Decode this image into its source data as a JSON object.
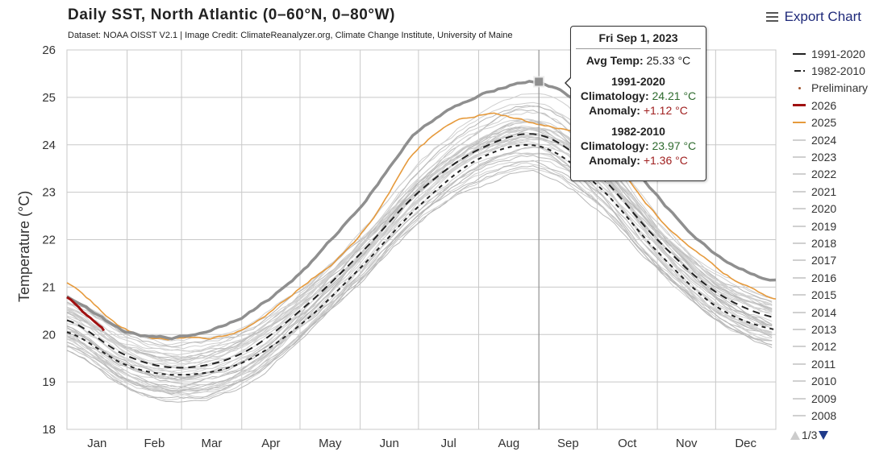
{
  "header": {
    "title": "Daily SST, North Atlantic (0–60°N, 0–80°W)",
    "subtitle": "Dataset: NOAA OISST V2.1 | Image Credit: ClimateReanalyzer.org, Climate Change Institute, University of Maine",
    "export_label": "Export Chart",
    "export_icon": "hamburger-menu-icon"
  },
  "tooltip": {
    "date": "Fri Sep 1, 2023",
    "avg_label": "Avg Temp:",
    "avg_value": "25.33 °C",
    "blocks": [
      {
        "period": "1991-2020",
        "clim_label": "Climatology:",
        "clim_value": "24.21 °C",
        "anom_label": "Anomaly:",
        "anom_value": "+1.12 °C"
      },
      {
        "period": "1982-2010",
        "clim_label": "Climatology:",
        "clim_value": "23.97 °C",
        "anom_label": "Anomaly:",
        "anom_value": "+1.36 °C"
      }
    ]
  },
  "legend": {
    "items": [
      {
        "label": "1991-2020",
        "style": "solid",
        "color": "#222222"
      },
      {
        "label": "1982-2010",
        "style": "dash-dot",
        "color": "#222222"
      },
      {
        "label": "Preliminary",
        "style": "dot",
        "color": "#a0522d"
      },
      {
        "label": "2026",
        "style": "solid-thick",
        "color": "#a01010"
      },
      {
        "label": "2025",
        "style": "solid",
        "color": "#e69a3c"
      },
      {
        "label": "2024",
        "style": "solid",
        "color": "#d0d0d0"
      },
      {
        "label": "2023",
        "style": "solid",
        "color": "#d0d0d0"
      },
      {
        "label": "2022",
        "style": "solid",
        "color": "#d0d0d0"
      },
      {
        "label": "2021",
        "style": "solid",
        "color": "#d0d0d0"
      },
      {
        "label": "2020",
        "style": "solid",
        "color": "#d0d0d0"
      },
      {
        "label": "2019",
        "style": "solid",
        "color": "#d0d0d0"
      },
      {
        "label": "2018",
        "style": "solid",
        "color": "#d0d0d0"
      },
      {
        "label": "2017",
        "style": "solid",
        "color": "#d0d0d0"
      },
      {
        "label": "2016",
        "style": "solid",
        "color": "#d0d0d0"
      },
      {
        "label": "2015",
        "style": "solid",
        "color": "#d0d0d0"
      },
      {
        "label": "2014",
        "style": "solid",
        "color": "#d0d0d0"
      },
      {
        "label": "2013",
        "style": "solid",
        "color": "#d0d0d0"
      },
      {
        "label": "2012",
        "style": "solid",
        "color": "#d0d0d0"
      },
      {
        "label": "2011",
        "style": "solid",
        "color": "#d0d0d0"
      },
      {
        "label": "2010",
        "style": "solid",
        "color": "#d0d0d0"
      },
      {
        "label": "2009",
        "style": "solid",
        "color": "#d0d0d0"
      },
      {
        "label": "2008",
        "style": "solid",
        "color": "#d0d0d0"
      }
    ],
    "page": "1/3"
  },
  "chart_data": {
    "type": "line",
    "title": "Daily SST, North Atlantic (0–60°N, 0–80°W)",
    "xlabel": "",
    "ylabel": "Temperature (°C)",
    "ylim": [
      18,
      26
    ],
    "yticks": [
      18,
      19,
      20,
      21,
      22,
      23,
      24,
      25,
      26
    ],
    "xlim_day_of_year": [
      1,
      366
    ],
    "month_ticks": [
      "Jan",
      "Feb",
      "Mar",
      "Apr",
      "May",
      "Jun",
      "Jul",
      "Aug",
      "Sep",
      "Oct",
      "Nov",
      "Dec"
    ],
    "grid": true,
    "legend_position": "right",
    "x_days": [
      1,
      32,
      60,
      91,
      121,
      152,
      182,
      213,
      244,
      274,
      305,
      335,
      366
    ],
    "series": [
      {
        "name": "1991-2020",
        "style": "long-dash",
        "color": "#222222",
        "values": [
          20.3,
          19.55,
          19.3,
          19.6,
          20.5,
          21.7,
          23.0,
          23.9,
          24.21,
          23.4,
          22.0,
          20.9,
          20.35
        ]
      },
      {
        "name": "1982-2010",
        "style": "short-dash",
        "color": "#222222",
        "values": [
          20.05,
          19.35,
          19.15,
          19.4,
          20.2,
          21.4,
          22.7,
          23.7,
          23.97,
          23.15,
          21.75,
          20.6,
          20.1
        ]
      },
      {
        "name": "2023",
        "style": "thick-solid",
        "color": "#909090",
        "values": [
          20.8,
          20.05,
          19.95,
          20.4,
          21.3,
          22.7,
          24.3,
          25.0,
          25.33,
          24.5,
          22.9,
          21.7,
          21.15
        ]
      },
      {
        "name": "2025",
        "style": "solid",
        "color": "#e69a3c",
        "values": [
          21.1,
          20.1,
          19.9,
          20.1,
          21.0,
          22.1,
          23.9,
          24.6,
          24.4,
          24.0,
          22.5,
          21.4,
          20.75
        ]
      },
      {
        "name": "2026",
        "style": "thick-solid",
        "color": "#a01010",
        "x_days": [
          1,
          6,
          11,
          16,
          20
        ],
        "values": [
          20.78,
          20.6,
          20.4,
          20.22,
          20.08
        ]
      }
    ],
    "background_years": [
      "1982–2024 (other years, light gray)"
    ],
    "highlight_point": {
      "series": "2023",
      "date": "Sep 1, 2023",
      "value": 25.33
    }
  }
}
